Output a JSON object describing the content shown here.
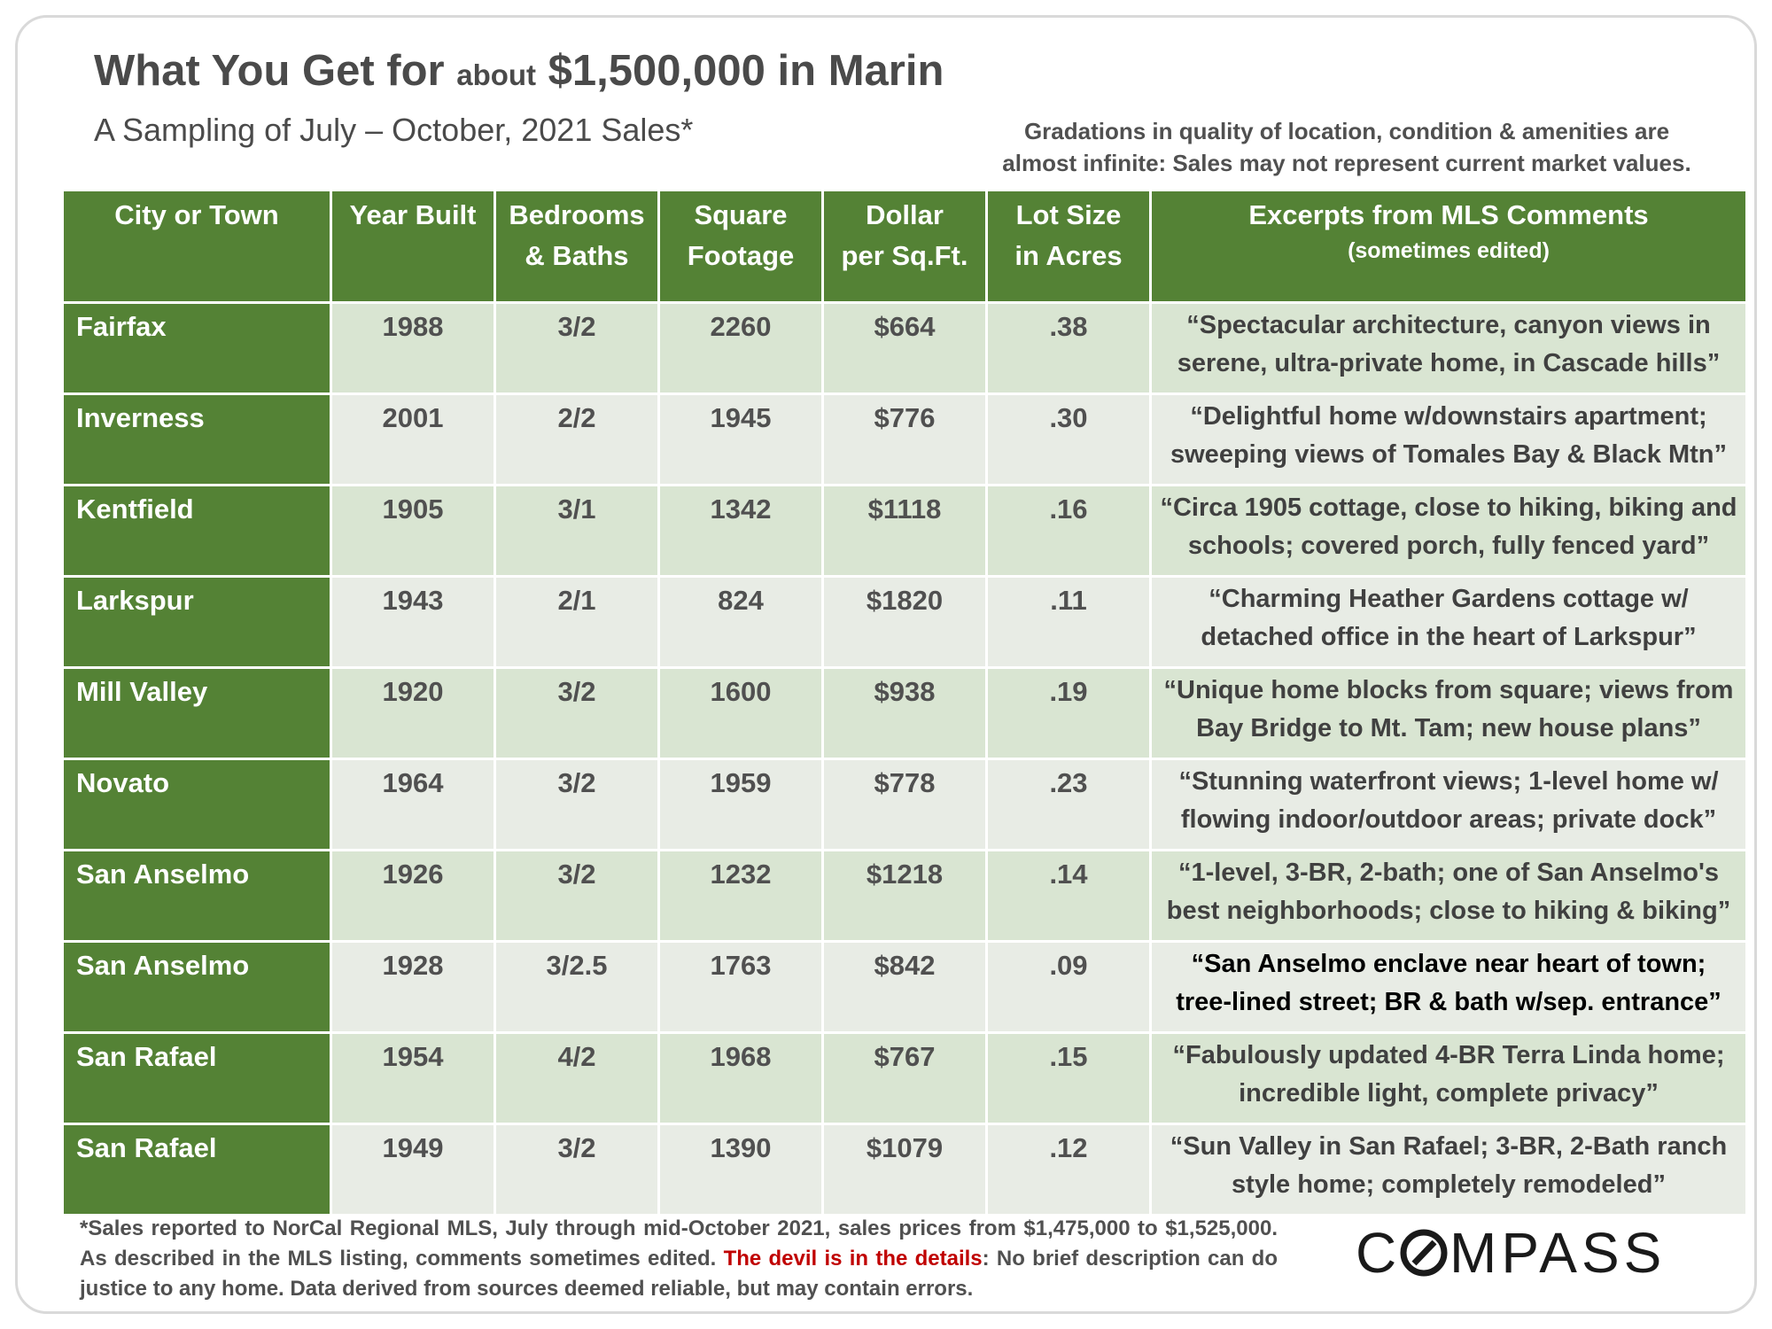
{
  "header": {
    "title_part1": "What You Get for ",
    "title_about": "about",
    "title_part2": " $1,500,000 in Marin",
    "subtitle": "A Sampling of July – October, 2021 Sales*",
    "disclaimer_line1": "Gradations in quality of location, condition & amenities are",
    "disclaimer_line2": "almost infinite: Sales may not represent current market values."
  },
  "table": {
    "columns": [
      {
        "line1": "City or Town",
        "line2": ""
      },
      {
        "line1": "Year Built",
        "line2": ""
      },
      {
        "line1": "Bedrooms",
        "line2": "& Baths"
      },
      {
        "line1": "Square",
        "line2": "Footage"
      },
      {
        "line1": "Dollar",
        "line2": "per Sq.Ft."
      },
      {
        "line1": "Lot Size",
        "line2": "in Acres"
      },
      {
        "line1": "Excerpts from MLS Comments",
        "line2": "(sometimes edited)"
      }
    ],
    "rows": [
      {
        "city": "Fairfax",
        "year": "1988",
        "bb": "3/2",
        "sqft": "2260",
        "ppsf": "$664",
        "lot": ".38",
        "c1": "“Spectacular architecture, canyon views in",
        "c2": "serene, ultra-private home, in Cascade hills”"
      },
      {
        "city": "Inverness",
        "year": "2001",
        "bb": "2/2",
        "sqft": "1945",
        "ppsf": "$776",
        "lot": ".30",
        "c1": "“Delightful home w/downstairs apartment;",
        "c2": "sweeping views of Tomales Bay & Black Mtn”"
      },
      {
        "city": "Kentfield",
        "year": "1905",
        "bb": "3/1",
        "sqft": "1342",
        "ppsf": "$1118",
        "lot": ".16",
        "c1": "“Circa 1905 cottage, close to hiking, biking and",
        "c2": "schools; covered porch, fully fenced yard”"
      },
      {
        "city": "Larkspur",
        "year": "1943",
        "bb": "2/1",
        "sqft": "824",
        "ppsf": "$1820",
        "lot": ".11",
        "c1": "“Charming Heather Gardens cottage w/",
        "c2": "detached office in the heart of Larkspur”"
      },
      {
        "city": "Mill Valley",
        "year": "1920",
        "bb": "3/2",
        "sqft": "1600",
        "ppsf": "$938",
        "lot": ".19",
        "c1": "“Unique home blocks from square; views from",
        "c2": "Bay Bridge to Mt. Tam; new house plans”"
      },
      {
        "city": "Novato",
        "year": "1964",
        "bb": "3/2",
        "sqft": "1959",
        "ppsf": "$778",
        "lot": ".23",
        "c1": "“Stunning waterfront views; 1-level home w/",
        "c2": "flowing indoor/outdoor areas; private dock”"
      },
      {
        "city": "San Anselmo",
        "year": "1926",
        "bb": "3/2",
        "sqft": "1232",
        "ppsf": "$1218",
        "lot": ".14",
        "c1": "“1-level, 3-BR, 2-bath; one of San Anselmo's",
        "c2": "best neighborhoods; close to hiking & biking”"
      },
      {
        "city": "San Anselmo",
        "year": "1928",
        "bb": "3/2.5",
        "sqft": "1763",
        "ppsf": "$842",
        "lot": ".09",
        "c1": "“San Anselmo enclave near heart of town;",
        "c2": "tree-lined street; BR & bath w/sep. entrance”"
      },
      {
        "city": "San Rafael",
        "year": "1954",
        "bb": "4/2",
        "sqft": "1968",
        "ppsf": "$767",
        "lot": ".15",
        "c1": "“Fabulously updated 4-BR Terra Linda home;",
        "c2": "incredible light, complete privacy”"
      },
      {
        "city": "San Rafael",
        "year": "1949",
        "bb": "3/2",
        "sqft": "1390",
        "ppsf": "$1079",
        "lot": ".12",
        "c1": "“Sun Valley in San Rafael; 3-BR, 2-Bath ranch",
        "c2": "style home; completely remodeled”"
      }
    ]
  },
  "footer": {
    "note_part1": "*Sales reported to NorCal Regional MLS, July through mid-October 2021, sales prices from $1,475,000 to $1,525,000. As described in the MLS listing, comments sometimes edited. ",
    "note_red": "The devil is in the details",
    "note_part2": ": No brief description can do justice to any home. Data derived from sources deemed reliable, but may contain errors.",
    "logo_text": "COMPASS"
  },
  "colors": {
    "header_green": "#548235",
    "row_shade_light": "#d9e5d2",
    "row_shade_pale": "#e8ece5",
    "accent_red": "#c00000"
  }
}
